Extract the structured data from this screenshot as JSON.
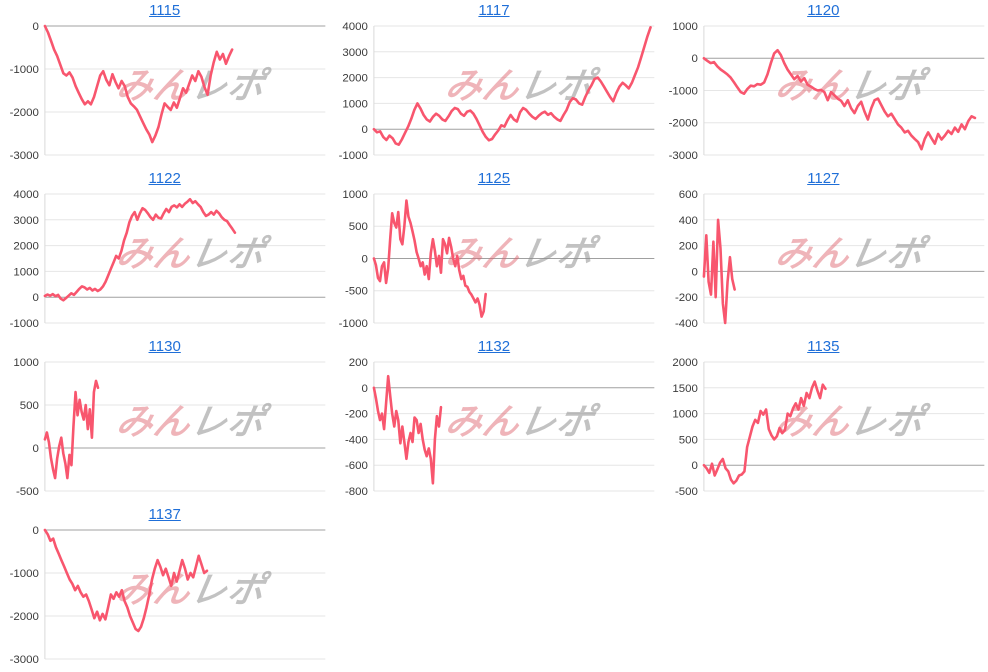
{
  "page": {
    "background": "#ffffff"
  },
  "style": {
    "line_color": "#f8566e",
    "grid_color": "#e6e6e6",
    "zero_line_color": "#a0a0a0",
    "axis_line_color": "#d9d9d9",
    "tick_label_color": "#3c3c3c",
    "link_color": "#1f6fd8",
    "watermark_pink": "rgba(222,98,108,0.48)",
    "watermark_gray": "rgba(143,143,143,0.55)"
  },
  "watermark": {
    "part1": "みん",
    "part2": "レポ"
  },
  "chart_data": [
    {
      "type": "line",
      "title": "1115",
      "yticks": [
        0,
        -1000,
        -2000,
        -3000
      ],
      "ylim": [
        -3000,
        0
      ],
      "x_extent": 0.67,
      "grid": true,
      "legend": "none",
      "values": [
        0,
        -150,
        -350,
        -550,
        -700,
        -900,
        -1100,
        -1150,
        -1080,
        -1200,
        -1400,
        -1550,
        -1700,
        -1820,
        -1750,
        -1820,
        -1650,
        -1400,
        -1150,
        -1050,
        -1250,
        -1380,
        -1120,
        -1300,
        -1450,
        -1280,
        -1400,
        -1650,
        -1800,
        -1870,
        -1950,
        -2100,
        -2250,
        -2400,
        -2520,
        -2700,
        -2550,
        -2350,
        -2050,
        -1800,
        -1880,
        -1950,
        -1780,
        -1900,
        -1680,
        -1450,
        -1550,
        -1350,
        -1150,
        -1280,
        -1050,
        -1180,
        -1420,
        -1600,
        -1150,
        -850,
        -600,
        -780,
        -650,
        -880,
        -700,
        -550
      ]
    },
    {
      "type": "line",
      "title": "1117",
      "yticks": [
        4000,
        3000,
        2000,
        1000,
        0,
        -1000
      ],
      "ylim": [
        -1000,
        4000
      ],
      "x_extent": 0.99,
      "grid": true,
      "legend": "none",
      "values": [
        0,
        -120,
        -80,
        -300,
        -420,
        -250,
        -350,
        -550,
        -600,
        -400,
        -150,
        100,
        400,
        750,
        1000,
        800,
        550,
        380,
        300,
        480,
        600,
        520,
        380,
        320,
        500,
        700,
        820,
        780,
        600,
        520,
        680,
        720,
        600,
        400,
        150,
        -100,
        -300,
        -430,
        -380,
        -200,
        -50,
        150,
        100,
        350,
        550,
        380,
        300,
        650,
        820,
        750,
        600,
        480,
        400,
        520,
        620,
        680,
        560,
        620,
        480,
        380,
        320,
        550,
        750,
        1050,
        1200,
        1150,
        1000,
        950,
        1250,
        1500,
        1700,
        1950,
        2000,
        1850,
        1650,
        1450,
        1250,
        1080,
        1400,
        1650,
        1800,
        1700,
        1580,
        1800,
        2100,
        2400,
        2800,
        3200,
        3600,
        3950
      ]
    },
    {
      "type": "line",
      "title": "1120",
      "yticks": [
        1000,
        0,
        -1000,
        -2000,
        -3000
      ],
      "ylim": [
        -3000,
        1000
      ],
      "x_extent": 0.97,
      "grid": true,
      "legend": "none",
      "values": [
        0,
        -80,
        -150,
        -120,
        -250,
        -350,
        -420,
        -500,
        -600,
        -750,
        -900,
        -1050,
        -1100,
        -950,
        -850,
        -870,
        -800,
        -820,
        -750,
        -500,
        -150,
        150,
        250,
        100,
        -150,
        -350,
        -500,
        -650,
        -550,
        -720,
        -620,
        -820,
        -880,
        -950,
        -1000,
        -980,
        -1050,
        -1300,
        -1050,
        -1150,
        -1250,
        -1320,
        -1480,
        -1300,
        -1550,
        -1700,
        -1480,
        -1350,
        -1650,
        -1900,
        -1550,
        -1300,
        -1250,
        -1450,
        -1650,
        -1800,
        -1720,
        -1880,
        -2050,
        -2150,
        -2300,
        -2250,
        -2400,
        -2500,
        -2600,
        -2820,
        -2500,
        -2300,
        -2480,
        -2650,
        -2350,
        -2520,
        -2400,
        -2250,
        -2350,
        -2150,
        -2280,
        -2050,
        -2200,
        -1950,
        -1800,
        -1850
      ]
    },
    {
      "type": "line",
      "title": "1122",
      "yticks": [
        4000,
        3000,
        2000,
        1000,
        0,
        -1000
      ],
      "ylim": [
        -1000,
        4000
      ],
      "x_extent": 0.68,
      "grid": true,
      "legend": "none",
      "values": [
        50,
        100,
        60,
        120,
        40,
        90,
        -60,
        -120,
        -30,
        60,
        150,
        90,
        200,
        320,
        420,
        380,
        300,
        360,
        260,
        320,
        240,
        300,
        420,
        600,
        850,
        1100,
        1350,
        1600,
        1500,
        1800,
        2200,
        2500,
        2900,
        3150,
        3300,
        3000,
        3250,
        3450,
        3380,
        3250,
        3100,
        3000,
        3200,
        3080,
        3050,
        3250,
        3420,
        3300,
        3500,
        3560,
        3480,
        3600,
        3500,
        3620,
        3700,
        3800,
        3650,
        3720,
        3600,
        3500,
        3300,
        3150,
        3200,
        3300,
        3200,
        3350,
        3250,
        3100,
        3000,
        2950,
        2800,
        2650,
        2500
      ]
    },
    {
      "type": "line",
      "title": "1125",
      "yticks": [
        1000,
        500,
        0,
        -500,
        -1000
      ],
      "ylim": [
        -1000,
        1000
      ],
      "x_extent": 0.4,
      "grid": true,
      "legend": "none",
      "values": [
        0,
        -100,
        -300,
        -350,
        -120,
        -60,
        -380,
        -150,
        300,
        700,
        550,
        480,
        720,
        300,
        220,
        500,
        900,
        650,
        550,
        420,
        280,
        100,
        0,
        -120,
        -60,
        -250,
        -120,
        -320,
        80,
        300,
        120,
        -120,
        40,
        -220,
        300,
        220,
        80,
        320,
        180,
        0,
        -120,
        40,
        -180,
        -320,
        -270,
        -420,
        -440,
        -520,
        -560,
        -620,
        -680,
        -620,
        -720,
        -900,
        -820,
        -550
      ]
    },
    {
      "type": "line",
      "title": "1127",
      "yticks": [
        600,
        400,
        200,
        0,
        -200,
        -400
      ],
      "ylim": [
        -400,
        600
      ],
      "x_extent": 0.11,
      "grid": true,
      "legend": "none",
      "values": [
        -40,
        280,
        -80,
        -180,
        230,
        -200,
        400,
        180,
        -250,
        -400,
        -80,
        110,
        -60,
        -140
      ]
    },
    {
      "type": "line",
      "title": "1130",
      "yticks": [
        1000,
        500,
        0,
        -500
      ],
      "ylim": [
        -500,
        1000
      ],
      "x_extent": 0.19,
      "grid": true,
      "legend": "none",
      "values": [
        100,
        180,
        60,
        -120,
        -250,
        -350,
        -120,
        20,
        120,
        -60,
        -180,
        -350,
        -80,
        -200,
        250,
        650,
        380,
        560,
        420,
        330,
        500,
        220,
        450,
        120,
        650,
        780,
        700
      ]
    },
    {
      "type": "line",
      "title": "1132",
      "yticks": [
        200,
        0,
        -200,
        -400,
        -600,
        -800
      ],
      "ylim": [
        -800,
        200
      ],
      "x_extent": 0.24,
      "grid": true,
      "legend": "none",
      "values": [
        0,
        -80,
        -180,
        -250,
        -200,
        -320,
        -120,
        90,
        -60,
        -200,
        -300,
        -180,
        -250,
        -430,
        -300,
        -420,
        -550,
        -420,
        -350,
        -420,
        -230,
        -250,
        -350,
        -280,
        -400,
        -480,
        -530,
        -470,
        -550,
        -740,
        -400,
        -220,
        -300,
        -150
      ]
    },
    {
      "type": "line",
      "title": "1135",
      "yticks": [
        2000,
        1500,
        1000,
        500,
        0,
        -500
      ],
      "ylim": [
        -500,
        2000
      ],
      "x_extent": 0.435,
      "grid": true,
      "legend": "none",
      "values": [
        0,
        -60,
        -150,
        30,
        -200,
        -80,
        50,
        120,
        -60,
        -120,
        -280,
        -350,
        -300,
        -200,
        -180,
        -120,
        350,
        550,
        750,
        880,
        820,
        1050,
        980,
        1080,
        700,
        580,
        500,
        560,
        720,
        620,
        680,
        1000,
        950,
        1100,
        1200,
        1080,
        1300,
        1150,
        1400,
        1300,
        1500,
        1620,
        1450,
        1300,
        1560,
        1480
      ]
    },
    {
      "type": "line",
      "title": "1137",
      "yticks": [
        0,
        -1000,
        -2000,
        -3000
      ],
      "ylim": [
        -3000,
        0
      ],
      "x_extent": 0.58,
      "grid": true,
      "legend": "none",
      "values": [
        0,
        -100,
        -250,
        -200,
        -400,
        -550,
        -700,
        -850,
        -1000,
        -1150,
        -1250,
        -1400,
        -1300,
        -1450,
        -1550,
        -1500,
        -1650,
        -1850,
        -2050,
        -1900,
        -2100,
        -1950,
        -2080,
        -1800,
        -1500,
        -1600,
        -1450,
        -1550,
        -1400,
        -1650,
        -1800,
        -2000,
        -2150,
        -2300,
        -2350,
        -2250,
        -2050,
        -1800,
        -1500,
        -1150,
        -900,
        -700,
        -850,
        -1050,
        -900,
        -1100,
        -1300,
        -1000,
        -1200,
        -950,
        -700,
        -900,
        -1150,
        -1000,
        -1100,
        -850,
        -600,
        -800,
        -1000,
        -950
      ]
    }
  ]
}
